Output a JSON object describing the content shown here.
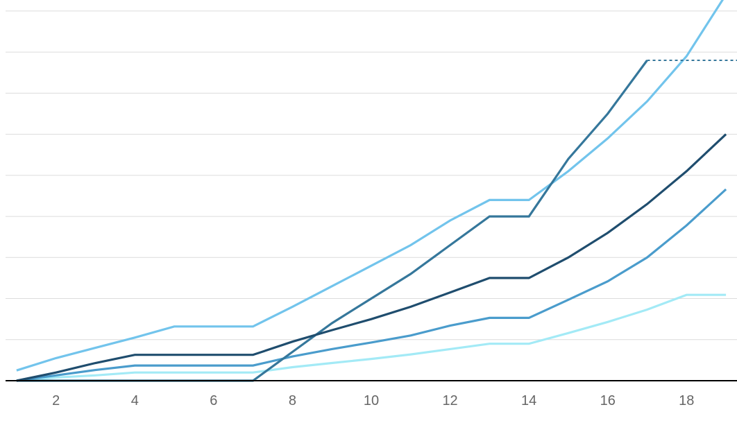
{
  "chart_data": {
    "type": "line",
    "title": "",
    "xlabel": "",
    "ylabel": "",
    "x": [
      1,
      2,
      3,
      4,
      5,
      6,
      7,
      8,
      9,
      10,
      11,
      12,
      13,
      14,
      15,
      16,
      17,
      18,
      19
    ],
    "x_ticks": [
      "2",
      "4",
      "6",
      "8",
      "10",
      "12",
      "14",
      "16",
      "18"
    ],
    "xlim": [
      0.72,
      19.28
    ],
    "ylim": [
      0,
      9.1
    ],
    "y_grid": [
      1,
      2,
      3,
      4,
      5,
      6,
      7,
      8,
      9
    ],
    "grid": true,
    "colors": [
      "#72c4ec",
      "#35779b",
      "#1f4d6e",
      "#4a9ccc",
      "#a3eaf6"
    ],
    "series": [
      {
        "values": [
          0.25,
          0.55,
          0.8,
          1.05,
          1.32,
          1.32,
          1.32,
          1.8,
          2.3,
          2.8,
          3.3,
          3.9,
          4.4,
          4.4,
          5.1,
          5.9,
          6.8,
          7.9,
          9.4
        ]
      },
      {
        "values": [
          0.0,
          0.0,
          0.0,
          0.0,
          0.0,
          0.0,
          0.0,
          0.7,
          1.4,
          2.0,
          2.6,
          3.3,
          4.0,
          4.0,
          5.4,
          6.5,
          7.8,
          null,
          null
        ]
      },
      {
        "values": [
          0.0,
          0.2,
          0.43,
          0.63,
          0.63,
          0.63,
          0.63,
          0.95,
          1.23,
          1.5,
          1.8,
          2.15,
          2.5,
          2.5,
          3.0,
          3.6,
          4.3,
          5.1,
          6.0
        ]
      },
      {
        "values": [
          0.0,
          0.13,
          0.26,
          0.37,
          0.37,
          0.37,
          0.37,
          0.59,
          0.77,
          0.93,
          1.1,
          1.34,
          1.53,
          1.53,
          1.97,
          2.42,
          3.0,
          3.78,
          4.66
        ]
      },
      {
        "values": [
          0.0,
          0.08,
          0.13,
          0.2,
          0.2,
          0.2,
          0.2,
          0.33,
          0.43,
          0.53,
          0.64,
          0.77,
          0.9,
          0.9,
          1.16,
          1.43,
          1.73,
          2.09,
          2.09
        ]
      }
    ],
    "projection": {
      "series_index": 1,
      "from_x": 17,
      "to_x": 19.28,
      "value": 7.8
    }
  }
}
